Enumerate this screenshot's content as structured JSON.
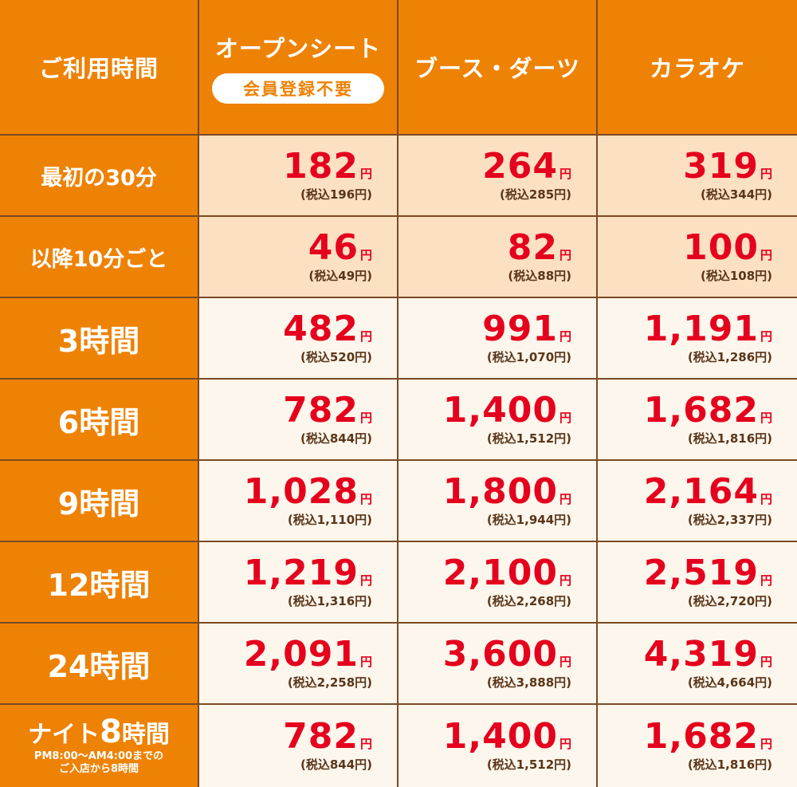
{
  "header": {
    "time_label": "ご利用時間",
    "columns": [
      {
        "title": "オープンシート",
        "badge": "会員登録不要"
      },
      {
        "title": "ブース・ダーツ"
      },
      {
        "title": "カラオケ"
      }
    ]
  },
  "yen": "円",
  "rows": [
    {
      "label": "最初の30分",
      "prices": [
        {
          "amount": "182",
          "tax": "(税込196円)"
        },
        {
          "amount": "264",
          "tax": "(税込285円)"
        },
        {
          "amount": "319",
          "tax": "(税込344円)"
        }
      ]
    },
    {
      "label": "以降10分ごと",
      "prices": [
        {
          "amount": "46",
          "tax": "(税込49円)"
        },
        {
          "amount": "82",
          "tax": "(税込88円)"
        },
        {
          "amount": "100",
          "tax": "(税込108円)"
        }
      ]
    },
    {
      "label": "3時間",
      "prices": [
        {
          "amount": "482",
          "tax": "(税込520円)"
        },
        {
          "amount": "991",
          "tax": "(税込1,070円)"
        },
        {
          "amount": "1,191",
          "tax": "(税込1,286円)"
        }
      ]
    },
    {
      "label": "6時間",
      "prices": [
        {
          "amount": "782",
          "tax": "(税込844円)"
        },
        {
          "amount": "1,400",
          "tax": "(税込1,512円)"
        },
        {
          "amount": "1,682",
          "tax": "(税込1,816円)"
        }
      ]
    },
    {
      "label": "9時間",
      "prices": [
        {
          "amount": "1,028",
          "tax": "(税込1,110円)"
        },
        {
          "amount": "1,800",
          "tax": "(税込1,944円)"
        },
        {
          "amount": "2,164",
          "tax": "(税込2,337円)"
        }
      ]
    },
    {
      "label": "12時間",
      "prices": [
        {
          "amount": "1,219",
          "tax": "(税込1,316円)"
        },
        {
          "amount": "2,100",
          "tax": "(税込2,268円)"
        },
        {
          "amount": "2,519",
          "tax": "(税込2,720円)"
        }
      ]
    },
    {
      "label": "24時間",
      "prices": [
        {
          "amount": "2,091",
          "tax": "(税込2,258円)"
        },
        {
          "amount": "3,600",
          "tax": "(税込3,888円)"
        },
        {
          "amount": "4,319",
          "tax": "(税込4,664円)"
        }
      ]
    },
    {
      "label_prefix": "ナイト",
      "label_big": "8",
      "label_suffix": "時間",
      "note_line1": "PM8:00～AM4:00までの",
      "note_line2": "ご入店から8時間",
      "prices": [
        {
          "amount": "782",
          "tax": "(税込844円)"
        },
        {
          "amount": "1,400",
          "tax": "(税込1,512円)"
        },
        {
          "amount": "1,682",
          "tax": "(税込1,816円)"
        }
      ]
    }
  ],
  "colors": {
    "orange": "#ee8205",
    "red": "#e5001d",
    "light_row": "#fbe0c2",
    "pale_row": "#fdf6ec",
    "border": "#7a4a22"
  }
}
